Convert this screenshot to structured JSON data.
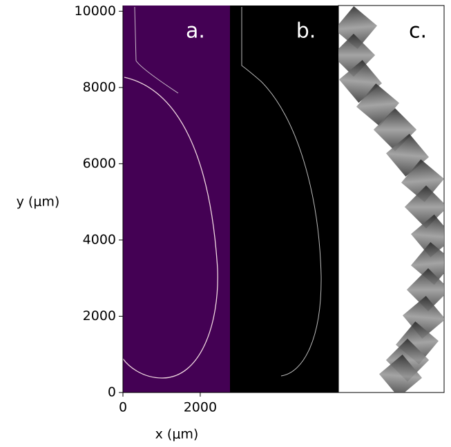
{
  "chart_data": {
    "type": "image",
    "xlabel": "x (μm)",
    "ylabel": "y (μm)",
    "xlim": [
      0,
      2770
    ],
    "ylim": [
      0,
      10150
    ],
    "xticks": [
      0,
      2000
    ],
    "yticks": [
      0,
      2000,
      4000,
      6000,
      8000,
      10000
    ],
    "panels": [
      "a.",
      "b.",
      "c."
    ],
    "colors": {
      "a": "#440154",
      "b": "#000000",
      "c": "#ffffff"
    }
  }
}
